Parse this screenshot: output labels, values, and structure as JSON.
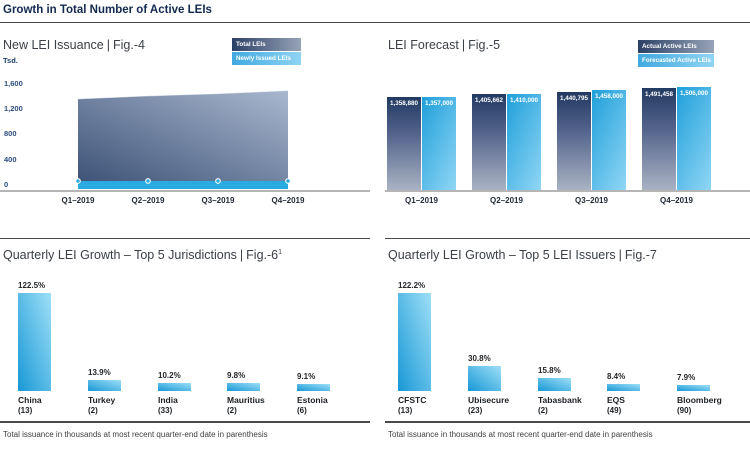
{
  "page": {
    "title": "Growth in Total Number of Active LEIs",
    "sep": "|"
  },
  "footnote": "Total issuance in thousands at most recent quarter-end date in parenthesis",
  "colors": {
    "bright_blue": "#29abe2",
    "dark_navy": "#223a61",
    "light_blue": "#90d6f5",
    "area_dark": "#3c5176",
    "area_light": "#a9b8cf"
  },
  "chart_data": [
    {
      "id": "fig4",
      "type": "area",
      "title": "New LEI Issuance",
      "fig": "Fig.-4",
      "unit_label": "Tsd.",
      "legend": [
        {
          "label": "Total LEIs",
          "style": "dark"
        },
        {
          "label": "Newly Issued LEIs",
          "style": "blue"
        }
      ],
      "x": [
        "Q1–2019",
        "Q2–2019",
        "Q3–2019",
        "Q4–2019"
      ],
      "series": [
        {
          "name": "Total LEIs",
          "values": [
            1359,
            1406,
            1441,
            1491
          ]
        },
        {
          "name": "Newly Issued LEIs",
          "values": [
            60,
            60,
            60,
            60
          ]
        }
      ],
      "ylabel": "Tsd.",
      "ylim": [
        0,
        1600
      ],
      "yticks": [
        "0",
        "400",
        "800",
        "1,200",
        "1,600"
      ],
      "grid": false,
      "legend_position": "top-right"
    },
    {
      "id": "fig5",
      "type": "bar",
      "title": "LEI Forecast",
      "fig": "Fig.-5",
      "legend": [
        {
          "label": "Actual Active LEIs",
          "style": "dark"
        },
        {
          "label": "Forecasted Active LEIs",
          "style": "blue"
        }
      ],
      "categories": [
        "Q1–2019",
        "Q2–2019",
        "Q3–2019",
        "Q4–2019"
      ],
      "series": [
        {
          "name": "Actual Active LEIs",
          "values": [
            1358880,
            1405662,
            1440795,
            1491458
          ],
          "labels": [
            "1,358,880",
            "1,405,662",
            "1,440,795",
            "1,491,458"
          ]
        },
        {
          "name": "Forecasted Active LEIs",
          "values": [
            1357000,
            1410000,
            1458000,
            1506000
          ],
          "labels": [
            "1,357,000",
            "1,410,000",
            "1,458,000",
            "1,506,000"
          ]
        }
      ],
      "legend_position": "top-right"
    },
    {
      "id": "fig6",
      "type": "bar",
      "title": "Quarterly LEI Growth – Top 5 Jurisdictions",
      "fig": "Fig.-6",
      "fig_sup": "1",
      "categories": [
        "China",
        "Turkey",
        "India",
        "Mauritius",
        "Estonia"
      ],
      "counts": [
        "(13)",
        "(2)",
        "(33)",
        "(2)",
        "(6)"
      ],
      "values": [
        122.5,
        13.9,
        10.2,
        9.8,
        9.1
      ],
      "labels": [
        "122.5%",
        "13.9%",
        "10.2%",
        "9.8%",
        "9.1%"
      ]
    },
    {
      "id": "fig7",
      "type": "bar",
      "title": "Quarterly LEI Growth – Top 5 LEI Issuers",
      "fig": "Fig.-7",
      "categories": [
        "CFSTC",
        "Ubisecure",
        "Tabasbank",
        "EQS",
        "Bloomberg"
      ],
      "counts": [
        "(13)",
        "(23)",
        "(2)",
        "(49)",
        "(90)"
      ],
      "values": [
        122.2,
        30.8,
        15.8,
        8.4,
        7.9
      ],
      "labels": [
        "122.2%",
        "30.8%",
        "15.8%",
        "8.4%",
        "7.9%"
      ]
    }
  ]
}
